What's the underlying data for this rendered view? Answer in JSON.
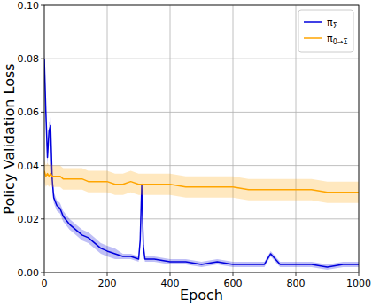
{
  "chart_data": {
    "type": "line",
    "x_label": "Epoch",
    "y_label": "Policy Validation Loss",
    "x": [
      0,
      5,
      10,
      15,
      20,
      25,
      30,
      40,
      50,
      60,
      80,
      100,
      120,
      140,
      160,
      180,
      200,
      225,
      250,
      275,
      300,
      305,
      310,
      315,
      320,
      350,
      400,
      450,
      500,
      550,
      600,
      650,
      700,
      720,
      750,
      800,
      850,
      900,
      950,
      1000
    ],
    "series": [
      {
        "name": "πΣ",
        "color": "#0000dd",
        "values": [
          0.08,
          0.06,
          0.043,
          0.053,
          0.055,
          0.035,
          0.028,
          0.025,
          0.024,
          0.021,
          0.018,
          0.016,
          0.014,
          0.013,
          0.011,
          0.009,
          0.008,
          0.007,
          0.006,
          0.006,
          0.005,
          0.012,
          0.033,
          0.01,
          0.005,
          0.005,
          0.004,
          0.004,
          0.003,
          0.004,
          0.003,
          0.003,
          0.003,
          0.007,
          0.003,
          0.003,
          0.003,
          0.002,
          0.003,
          0.003
        ],
        "error": [
          0.003,
          0.003,
          0.003,
          0.003,
          0.003,
          0.003,
          0.002,
          0.002,
          0.002,
          0.002,
          0.002,
          0.002,
          0.002,
          0.002,
          0.002,
          0.002,
          0.002,
          0.002,
          0.001,
          0.001,
          0.001,
          0.001,
          0.001,
          0.001,
          0.001,
          0.001,
          0.001,
          0.001,
          0.001,
          0.001,
          0.001,
          0.001,
          0.001,
          0.001,
          0.001,
          0.001,
          0.001,
          0.001,
          0.001,
          0.001
        ]
      },
      {
        "name": "π0→Σ",
        "color": "#ffa500",
        "values": [
          0.038,
          0.036,
          0.037,
          0.036,
          0.037,
          0.036,
          0.036,
          0.036,
          0.036,
          0.035,
          0.035,
          0.035,
          0.035,
          0.034,
          0.034,
          0.034,
          0.034,
          0.033,
          0.033,
          0.034,
          0.033,
          0.033,
          0.033,
          0.033,
          0.033,
          0.033,
          0.033,
          0.032,
          0.032,
          0.032,
          0.032,
          0.031,
          0.031,
          0.031,
          0.031,
          0.031,
          0.031,
          0.03,
          0.03,
          0.03
        ],
        "error": [
          0.004,
          0.004,
          0.004,
          0.004,
          0.004,
          0.004,
          0.004,
          0.004,
          0.004,
          0.004,
          0.004,
          0.004,
          0.004,
          0.004,
          0.004,
          0.004,
          0.004,
          0.004,
          0.004,
          0.004,
          0.004,
          0.004,
          0.004,
          0.004,
          0.004,
          0.004,
          0.004,
          0.004,
          0.004,
          0.004,
          0.004,
          0.004,
          0.004,
          0.004,
          0.004,
          0.004,
          0.004,
          0.004,
          0.004,
          0.004
        ]
      }
    ],
    "xlim": [
      0,
      1000
    ],
    "xticks": [
      0,
      200,
      400,
      600,
      800,
      1000
    ],
    "ylim": [
      0,
      0.1
    ],
    "yticks": [
      {
        "value": 0,
        "label": "0.00"
      },
      {
        "value": 0.02,
        "label": "0.02"
      },
      {
        "value": 0.04,
        "label": "0.04"
      },
      {
        "value": 0.06,
        "label": "0.06"
      },
      {
        "value": 0.08,
        "label": "0.08"
      },
      {
        "value": 0.1,
        "label": "0.10"
      }
    ],
    "grid": true,
    "legend": "upper right"
  }
}
